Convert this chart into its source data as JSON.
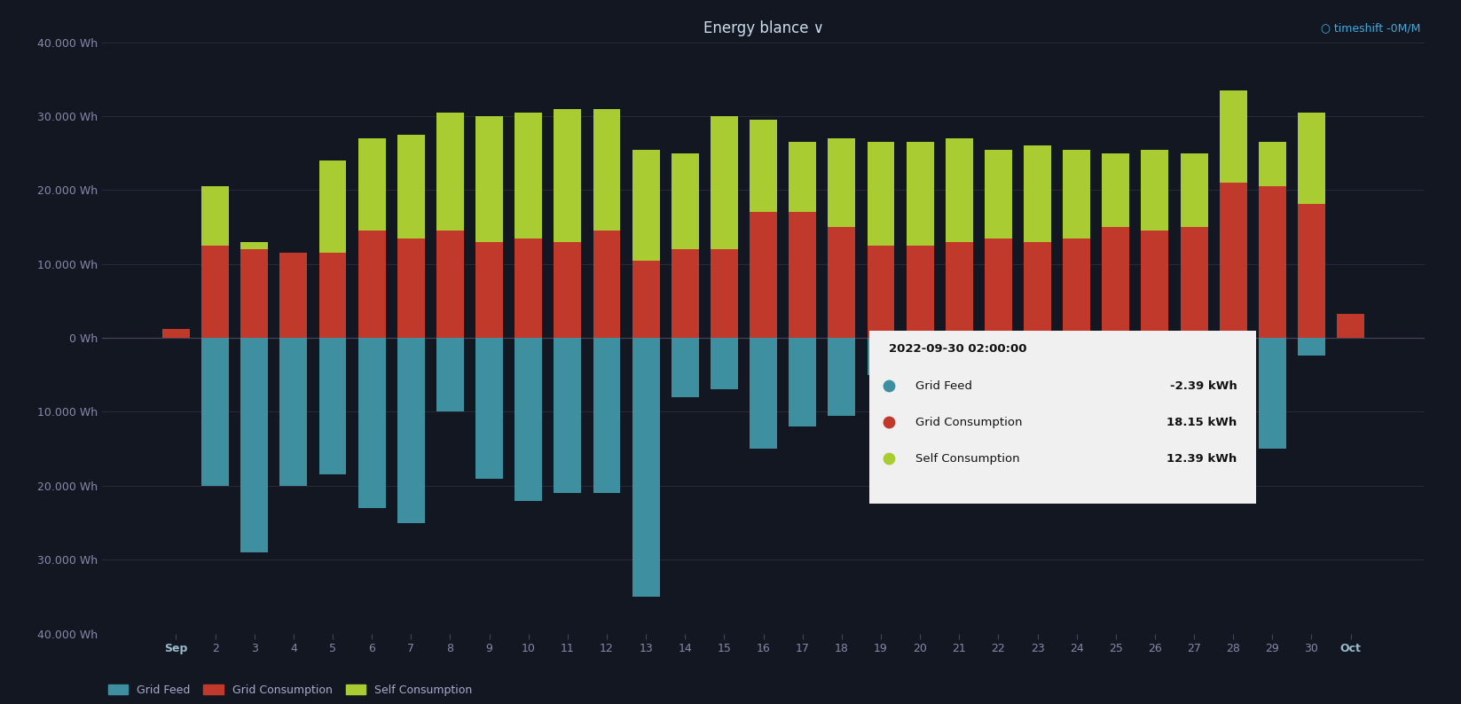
{
  "title": "Energy blance ∨",
  "title_right": "○ timeshift -0M/M",
  "background_color": "#131722",
  "colors": {
    "grid_feed": "#3e8fa0",
    "grid_consumption": "#c0392b",
    "self_consumption": "#aacc33"
  },
  "legend": [
    "Grid Feed",
    "Grid Consumption",
    "Self Consumption"
  ],
  "categories": [
    "Sep",
    "2",
    "3",
    "4",
    "5",
    "6",
    "7",
    "8",
    "9",
    "10",
    "11",
    "12",
    "13",
    "14",
    "15",
    "16",
    "17",
    "18",
    "19",
    "20",
    "21",
    "22",
    "23",
    "24",
    "25",
    "26",
    "27",
    "28",
    "29",
    "30",
    "Oct"
  ],
  "ylim": [
    -40000,
    40000
  ],
  "yticks": [
    -40000,
    -30000,
    -20000,
    -10000,
    0,
    10000,
    20000,
    30000,
    40000
  ],
  "ytick_labels": [
    "40.000 Wh",
    "30.000 Wh",
    "20.000 Wh",
    "10.000 Wh",
    "0 Wh",
    "10.000 Wh",
    "20.000 Wh",
    "30.000 Wh",
    "40.000 Wh"
  ],
  "grid_feed": [
    0,
    -20000,
    -29000,
    -20000,
    -18500,
    -23000,
    -25000,
    -10000,
    -19000,
    -22000,
    -21000,
    -21000,
    -35000,
    -8000,
    -7000,
    -15000,
    -12000,
    -10500,
    -5000,
    -15000,
    -3000,
    -18000,
    -2000,
    -1000,
    -4000,
    -2000,
    -5000,
    -11000,
    -15000,
    -2390,
    0
  ],
  "grid_consumption": [
    1200,
    12500,
    12000,
    11500,
    11500,
    14500,
    13500,
    14500,
    13000,
    13500,
    13000,
    14500,
    10500,
    12000,
    12000,
    17000,
    17000,
    15000,
    12500,
    12500,
    13000,
    13500,
    13000,
    13500,
    15000,
    14500,
    15000,
    21000,
    20500,
    18150,
    3200
  ],
  "self_consumption": [
    0,
    8000,
    1000,
    0,
    12500,
    12500,
    14000,
    16000,
    17000,
    17000,
    18000,
    16500,
    15000,
    13000,
    18000,
    12500,
    9500,
    12000,
    14000,
    14000,
    14000,
    12000,
    13000,
    12000,
    10000,
    11000,
    10000,
    12500,
    6000,
    12390,
    0
  ],
  "tooltip": {
    "date": "2022-09-30 02:00:00",
    "grid_feed_label": "Grid Feed",
    "grid_feed_val": "-2.39 kWh",
    "grid_cons_label": "Grid Consumption",
    "grid_cons_val": "18.15 kWh",
    "self_cons_label": "Self Consumption",
    "self_cons_val": "12.39 kWh"
  }
}
